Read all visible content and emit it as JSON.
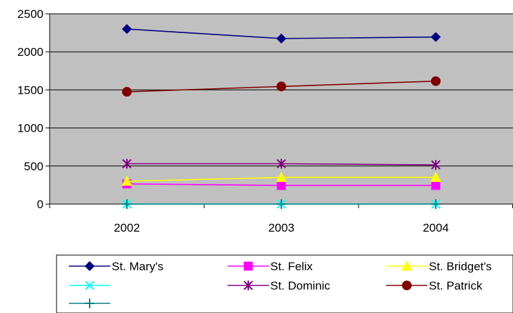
{
  "chart_data": {
    "type": "line",
    "categories": [
      "2002",
      "2003",
      "2004"
    ],
    "ylim": [
      0,
      2500
    ],
    "yticks": [
      0,
      500,
      1000,
      1500,
      2000,
      2500
    ],
    "grid": true,
    "plot_background": "#c0c0c0",
    "legend_position": "bottom",
    "series": [
      {
        "name": "St. Mary's",
        "values": [
          2300,
          2175,
          2195
        ],
        "color": "#000080",
        "marker": "diamond"
      },
      {
        "name": "St. Felix",
        "values": [
          265,
          245,
          245
        ],
        "color": "#ff00ff",
        "marker": "square"
      },
      {
        "name": "St. Bridget's",
        "values": [
          300,
          350,
          350
        ],
        "color": "#ffff00",
        "marker": "triangle"
      },
      {
        "name": "",
        "values": [
          0,
          0,
          0
        ],
        "color": "#00ffff",
        "marker": "x"
      },
      {
        "name": "St. Dominic",
        "values": [
          530,
          530,
          515
        ],
        "color": "#800080",
        "marker": "star"
      },
      {
        "name": "St. Patrick",
        "values": [
          1475,
          1545,
          1615
        ],
        "color": "#800000",
        "marker": "circle"
      },
      {
        "name": "",
        "values": [
          0,
          0,
          0
        ],
        "color": "#008080",
        "marker": "plus"
      }
    ]
  }
}
